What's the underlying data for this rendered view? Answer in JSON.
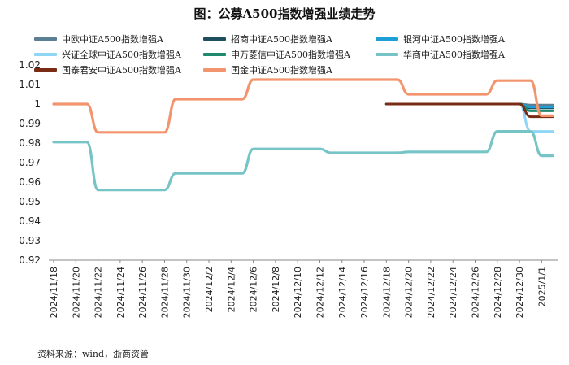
{
  "title": "图：公募A500指数增强业绩走势",
  "source": "资料来源：wind，浙商资管",
  "chart_data": {
    "type": "line",
    "ylim": [
      0.92,
      1.02
    ],
    "yticks": [
      "1.02",
      "1.01",
      "1",
      "0.99",
      "0.98",
      "0.97",
      "0.96",
      "0.95",
      "0.94",
      "0.93",
      "0.92"
    ],
    "ytick_values": [
      1.02,
      1.01,
      1.0,
      0.99,
      0.98,
      0.97,
      0.96,
      0.95,
      0.94,
      0.93,
      0.92
    ],
    "xticks": [
      "2024/11/18",
      "2024/11/20",
      "2024/11/22",
      "2024/11/24",
      "2024/11/26",
      "2024/11/28",
      "2024/11/30",
      "2024/12/2",
      "2024/12/4",
      "2024/12/6",
      "2024/12/8",
      "2024/12/10",
      "2024/12/12",
      "2024/12/14",
      "2024/12/16",
      "2024/12/18",
      "2024/12/20",
      "2024/12/22",
      "2024/12/24",
      "2024/12/26",
      "2024/12/28",
      "2024/12/30",
      "2025/1/1"
    ],
    "x": [
      "2024/11/18",
      "2024/11/19",
      "2024/11/20",
      "2024/11/21",
      "2024/11/22",
      "2024/11/23",
      "2024/11/24",
      "2024/11/25",
      "2024/11/26",
      "2024/11/27",
      "2024/11/28",
      "2024/11/29",
      "2024/11/30",
      "2024/12/1",
      "2024/12/2",
      "2024/12/3",
      "2024/12/4",
      "2024/12/5",
      "2024/12/6",
      "2024/12/7",
      "2024/12/8",
      "2024/12/9",
      "2024/12/10",
      "2024/12/11",
      "2024/12/12",
      "2024/12/13",
      "2024/12/14",
      "2024/12/15",
      "2024/12/16",
      "2024/12/17",
      "2024/12/18",
      "2024/12/19",
      "2024/12/20",
      "2024/12/21",
      "2024/12/22",
      "2024/12/23",
      "2024/12/24",
      "2024/12/25",
      "2024/12/26",
      "2024/12/27",
      "2024/12/28",
      "2024/12/29",
      "2024/12/30",
      "2024/12/31",
      "2025/1/1",
      "2025/1/2"
    ],
    "series": [
      {
        "name": "中欧中证A500指数增强A",
        "color": "#5b7f95",
        "values": [
          null,
          null,
          null,
          null,
          null,
          null,
          null,
          null,
          null,
          null,
          null,
          null,
          null,
          null,
          null,
          null,
          null,
          null,
          null,
          null,
          null,
          null,
          null,
          null,
          null,
          null,
          null,
          null,
          null,
          null,
          1.0,
          1.0,
          1.0,
          1.0,
          1.0,
          1.0,
          1.0,
          1.0,
          1.0,
          1.0,
          1.0,
          1.0,
          1.0,
          0.9995,
          0.9995,
          0.9995
        ]
      },
      {
        "name": "招商中证A500指数增强A",
        "color": "#1f4e5f",
        "values": [
          null,
          null,
          null,
          null,
          null,
          null,
          null,
          null,
          null,
          null,
          null,
          null,
          null,
          null,
          null,
          null,
          null,
          null,
          null,
          null,
          null,
          null,
          null,
          null,
          null,
          null,
          null,
          null,
          null,
          null,
          1.0,
          1.0,
          1.0,
          1.0,
          1.0,
          1.0,
          1.0,
          1.0,
          1.0,
          1.0,
          1.0,
          1.0,
          1.0,
          0.998,
          0.998,
          0.998
        ]
      },
      {
        "name": "银河中证A500指数增强A",
        "color": "#1e9fd6",
        "values": [
          null,
          null,
          null,
          null,
          null,
          null,
          null,
          null,
          null,
          null,
          null,
          null,
          null,
          null,
          null,
          null,
          null,
          null,
          null,
          null,
          null,
          null,
          null,
          null,
          null,
          null,
          null,
          null,
          null,
          null,
          1.0,
          1.0,
          1.0,
          1.0,
          1.0,
          1.0,
          1.0,
          1.0,
          1.0,
          1.0,
          1.0,
          1.0,
          1.0,
          0.9985,
          0.9985,
          0.9985
        ]
      },
      {
        "name": "兴证全球中证A500指数增强A",
        "color": "#8fd5f5",
        "values": [
          null,
          null,
          null,
          null,
          null,
          null,
          null,
          null,
          null,
          null,
          null,
          null,
          null,
          null,
          null,
          null,
          null,
          null,
          null,
          null,
          null,
          null,
          null,
          null,
          null,
          null,
          null,
          null,
          null,
          null,
          1.0,
          1.0,
          1.0,
          1.0,
          1.0,
          1.0,
          1.0,
          1.0,
          1.0,
          1.0,
          1.0,
          1.0,
          1.0,
          0.986,
          0.986,
          0.986
        ]
      },
      {
        "name": "申万菱信中证A500指数增强A",
        "color": "#1f8a6e",
        "values": [
          null,
          null,
          null,
          null,
          null,
          null,
          null,
          null,
          null,
          null,
          null,
          null,
          null,
          null,
          null,
          null,
          null,
          null,
          null,
          null,
          null,
          null,
          null,
          null,
          null,
          null,
          null,
          null,
          null,
          null,
          1.0,
          1.0,
          1.0,
          1.0,
          1.0,
          1.0,
          1.0,
          1.0,
          1.0,
          1.0,
          1.0,
          1.0,
          1.0,
          0.9965,
          0.9965,
          0.9965
        ]
      },
      {
        "name": "华商中证A500指数增强A",
        "color": "#76c4c6",
        "values": [
          0.9805,
          0.9805,
          0.9805,
          0.9805,
          0.956,
          0.956,
          0.956,
          0.956,
          0.956,
          0.956,
          0.956,
          0.9645,
          0.9645,
          0.9645,
          0.9645,
          0.9645,
          0.9645,
          0.9645,
          0.977,
          0.977,
          0.977,
          0.977,
          0.977,
          0.977,
          0.977,
          0.975,
          0.975,
          0.975,
          0.975,
          0.975,
          0.975,
          0.975,
          0.9755,
          0.9755,
          0.9755,
          0.9755,
          0.9755,
          0.9755,
          0.9755,
          0.9755,
          0.986,
          0.986,
          0.986,
          0.986,
          0.9735,
          0.9735
        ]
      },
      {
        "name": "国泰君安中证A500指数增强A",
        "color": "#7a2b14",
        "values": [
          null,
          null,
          null,
          null,
          null,
          null,
          null,
          null,
          null,
          null,
          null,
          null,
          null,
          null,
          null,
          null,
          null,
          null,
          null,
          null,
          null,
          null,
          null,
          null,
          null,
          null,
          null,
          null,
          null,
          null,
          1.0,
          1.0,
          1.0,
          1.0,
          1.0,
          1.0,
          1.0,
          1.0,
          1.0,
          1.0,
          1.0,
          1.0,
          1.0,
          0.9935,
          0.9935,
          0.9935
        ]
      },
      {
        "name": "国金中证A500指数增强A",
        "color": "#f2956e",
        "values": [
          1.0,
          1.0,
          1.0,
          1.0,
          0.9855,
          0.9855,
          0.9855,
          0.9855,
          0.9855,
          0.9855,
          0.9855,
          1.0025,
          1.0025,
          1.0025,
          1.0025,
          1.0025,
          1.0025,
          1.0025,
          1.0125,
          1.0125,
          1.0125,
          1.0125,
          1.0125,
          1.0125,
          1.0125,
          1.0125,
          1.0125,
          1.0125,
          1.0125,
          1.0125,
          1.0125,
          1.0125,
          1.005,
          1.005,
          1.005,
          1.005,
          1.005,
          1.005,
          1.005,
          1.005,
          1.012,
          1.012,
          1.012,
          1.012,
          0.994,
          0.994
        ]
      }
    ]
  }
}
